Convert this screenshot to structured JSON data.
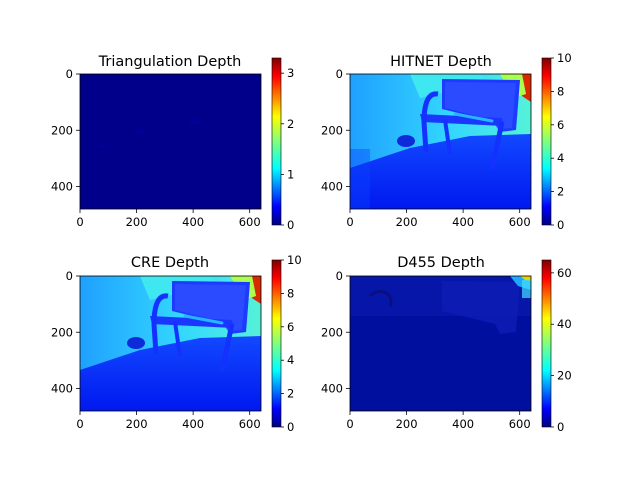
{
  "colors": {
    "jet": [
      "#00007f",
      "#0000ff",
      "#007fff",
      "#00ffff",
      "#7fff7f",
      "#ffff00",
      "#ff7f00",
      "#ff0000",
      "#7f0000"
    ],
    "axis": "#000000"
  },
  "chart_data": [
    {
      "type": "heatmap",
      "title": "Triangulation Depth",
      "xticks": [
        "0",
        "200",
        "400",
        "600"
      ],
      "yticks": [
        "0",
        "200",
        "400"
      ],
      "xlim": [
        0,
        640
      ],
      "ylim": [
        480,
        0
      ],
      "colorbar": {
        "ticks": [
          "0",
          "1",
          "2",
          "3"
        ],
        "range": [
          0,
          3.3
        ]
      },
      "content": "nearly uniform near-zero depth"
    },
    {
      "type": "heatmap",
      "title": "HITNET Depth",
      "xticks": [
        "0",
        "200",
        "400",
        "600"
      ],
      "yticks": [
        "0",
        "200",
        "400"
      ],
      "xlim": [
        0,
        640
      ],
      "ylim": [
        480,
        0
      ],
      "colorbar": {
        "ticks": [
          "0",
          "2",
          "4",
          "6",
          "8",
          "10"
        ],
        "range": [
          0,
          10
        ]
      },
      "content": "bench scene, background far (green/red) near top"
    },
    {
      "type": "heatmap",
      "title": "CRE Depth",
      "xticks": [
        "0",
        "200",
        "400",
        "600"
      ],
      "yticks": [
        "0",
        "200",
        "400"
      ],
      "xlim": [
        0,
        640
      ],
      "ylim": [
        480,
        0
      ],
      "colorbar": {
        "ticks": [
          "0",
          "2",
          "4",
          "6",
          "8",
          "10"
        ],
        "range": [
          0,
          10
        ]
      },
      "content": "bench scene, background far (green/red) near top"
    },
    {
      "type": "heatmap",
      "title": "D455 Depth",
      "xticks": [
        "0",
        "200",
        "400",
        "600"
      ],
      "yticks": [
        "0",
        "200",
        "400"
      ],
      "xlim": [
        0,
        640
      ],
      "ylim": [
        480,
        0
      ],
      "colorbar": {
        "ticks": [
          "0",
          "20",
          "40",
          "60"
        ],
        "range": [
          0,
          65
        ]
      },
      "content": "mostly dark blue, small bright region top-right"
    }
  ]
}
